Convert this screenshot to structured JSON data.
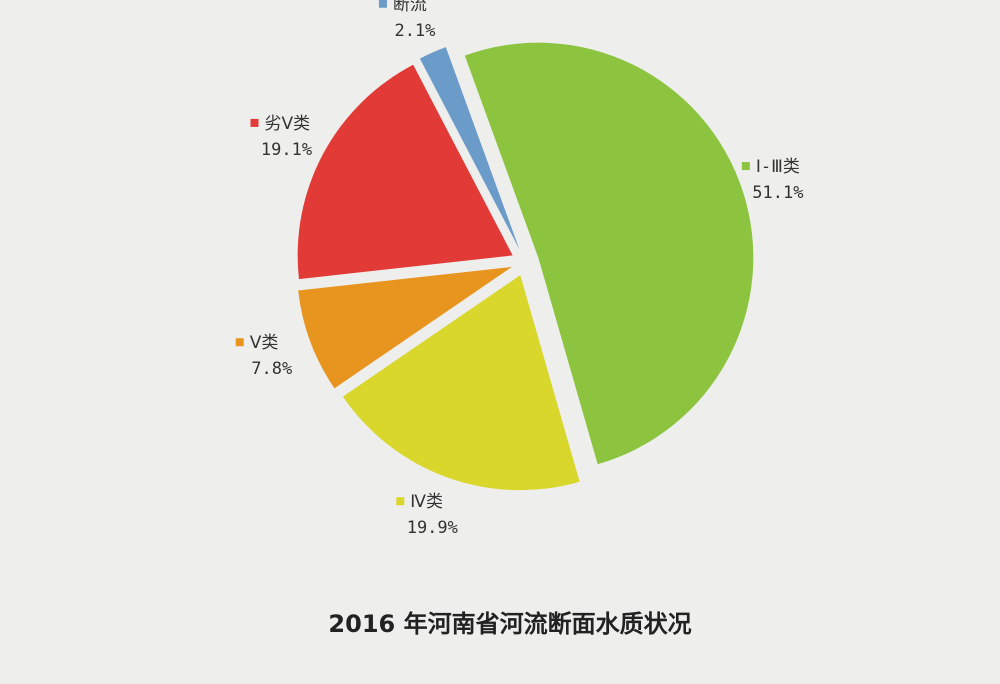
{
  "chart_data": {
    "type": "pie",
    "title": "2016 年河南省河流断面水质状况",
    "categories": [
      "Ⅰ-Ⅲ类",
      "Ⅳ类",
      "Ⅴ类",
      "劣Ⅴ类",
      "断流"
    ],
    "values": [
      51.1,
      19.9,
      7.8,
      19.1,
      2.1
    ],
    "value_labels": [
      "51.1%",
      "19.9%",
      "7.8%",
      "19.1%",
      "2.1%"
    ],
    "colors": [
      "#8cc43f",
      "#d9d62c",
      "#e8951f",
      "#e23a37",
      "#6b9cc9"
    ]
  }
}
